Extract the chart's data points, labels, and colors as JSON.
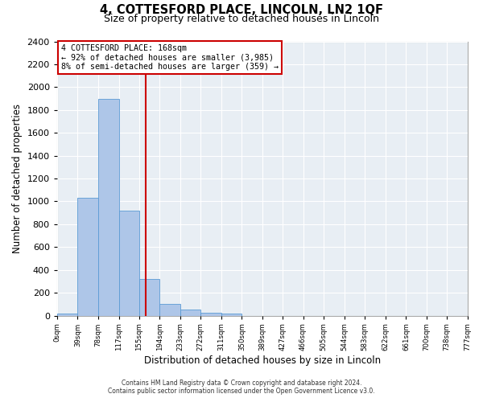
{
  "title": "4, COTTESFORD PLACE, LINCOLN, LN2 1QF",
  "subtitle": "Size of property relative to detached houses in Lincoln",
  "xlabel": "Distribution of detached houses by size in Lincoln",
  "ylabel": "Number of detached properties",
  "bar_values": [
    20,
    1030,
    1900,
    920,
    320,
    105,
    50,
    25,
    15,
    0,
    0,
    0,
    0,
    0,
    0,
    0,
    0,
    0,
    0,
    0
  ],
  "bin_edges": [
    0,
    39,
    78,
    117,
    155,
    194,
    233,
    272,
    311,
    350,
    389,
    427,
    466,
    505,
    544,
    583,
    622,
    661,
    700,
    738,
    777
  ],
  "tick_labels": [
    "0sqm",
    "39sqm",
    "78sqm",
    "117sqm",
    "155sqm",
    "194sqm",
    "233sqm",
    "272sqm",
    "311sqm",
    "350sqm",
    "389sqm",
    "427sqm",
    "466sqm",
    "505sqm",
    "544sqm",
    "583sqm",
    "622sqm",
    "661sqm",
    "700sqm",
    "738sqm",
    "777sqm"
  ],
  "bar_color": "#aec6e8",
  "bar_edgecolor": "#5b9bd5",
  "vline_x": 168,
  "vline_color": "#cc0000",
  "ylim": [
    0,
    2400
  ],
  "yticks": [
    0,
    200,
    400,
    600,
    800,
    1000,
    1200,
    1400,
    1600,
    1800,
    2000,
    2200,
    2400
  ],
  "annotation_title": "4 COTTESFORD PLACE: 168sqm",
  "annotation_line1": "← 92% of detached houses are smaller (3,985)",
  "annotation_line2": "8% of semi-detached houses are larger (359) →",
  "annotation_box_color": "#cc0000",
  "footnote1": "Contains HM Land Registry data © Crown copyright and database right 2024.",
  "footnote2": "Contains public sector information licensed under the Open Government Licence v3.0.",
  "bg_color": "#ffffff",
  "plot_bg_color": "#e8eef4"
}
